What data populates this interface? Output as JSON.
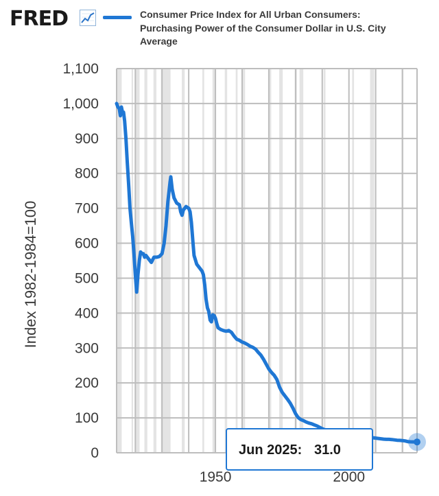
{
  "header": {
    "logo_text": "FRED",
    "logo_icon": "line-chart-icon",
    "title": "Consumer Price Index for All Urban Consumers: Purchasing Power of the Consumer Dollar in U.S. City Average"
  },
  "colors": {
    "line": "#1f77d4",
    "grid": "#bdbdbd",
    "recession": "#e4e4e4",
    "tooltip_border": "#1f77d4"
  },
  "tooltip": {
    "date": "Jun 2025:",
    "value": "31.0"
  },
  "chart_data": {
    "type": "line",
    "title": "Consumer Price Index for All Urban Consumers: Purchasing Power of the Consumer Dollar in U.S. City Average",
    "ylabel": "Index 1982-1984=100",
    "xlabel": "",
    "xlim": [
      1913,
      2025.5
    ],
    "ylim": [
      0,
      1100
    ],
    "x_ticks": [
      1950,
      2000
    ],
    "y_ticks": [
      0,
      100,
      200,
      300,
      400,
      500,
      600,
      700,
      800,
      900,
      1000,
      1100
    ],
    "y_tick_labels": [
      "0",
      "100",
      "200",
      "300",
      "400",
      "500",
      "600",
      "700",
      "800",
      "900",
      "1,000",
      "1,100"
    ],
    "grid": true,
    "recessions": [
      [
        1913.0,
        1914.9
      ],
      [
        1918.6,
        1919.2
      ],
      [
        1920.0,
        1921.6
      ],
      [
        1923.4,
        1924.5
      ],
      [
        1926.8,
        1927.9
      ],
      [
        1929.6,
        1933.2
      ],
      [
        1937.4,
        1938.5
      ],
      [
        1945.1,
        1945.8
      ],
      [
        1948.9,
        1949.8
      ],
      [
        1953.5,
        1954.4
      ],
      [
        1957.6,
        1958.3
      ],
      [
        1960.3,
        1961.1
      ],
      [
        1969.9,
        1970.9
      ],
      [
        1973.9,
        1975.2
      ],
      [
        1980.0,
        1980.5
      ],
      [
        1981.5,
        1982.9
      ],
      [
        1990.5,
        1991.2
      ],
      [
        2001.2,
        2001.9
      ],
      [
        2007.9,
        2009.5
      ],
      [
        2020.1,
        2020.3
      ]
    ],
    "series": [
      {
        "points": [
          [
            1913.0,
            1000
          ],
          [
            1913.5,
            990
          ],
          [
            1914.0,
            985
          ],
          [
            1914.4,
            965
          ],
          [
            1914.8,
            990
          ],
          [
            1915.2,
            975
          ],
          [
            1915.6,
            975
          ],
          [
            1916.0,
            950
          ],
          [
            1916.5,
            900
          ],
          [
            1917.0,
            830
          ],
          [
            1917.5,
            770
          ],
          [
            1918.0,
            700
          ],
          [
            1918.5,
            660
          ],
          [
            1919.0,
            620
          ],
          [
            1919.5,
            570
          ],
          [
            1920.0,
            510
          ],
          [
            1920.5,
            460
          ],
          [
            1921.0,
            510
          ],
          [
            1921.5,
            550
          ],
          [
            1922.0,
            575
          ],
          [
            1922.5,
            570
          ],
          [
            1923.0,
            570
          ],
          [
            1923.5,
            560
          ],
          [
            1924.0,
            565
          ],
          [
            1925.0,
            555
          ],
          [
            1926.0,
            545
          ],
          [
            1927.0,
            560
          ],
          [
            1928.0,
            560
          ],
          [
            1929.0,
            562
          ],
          [
            1930.0,
            570
          ],
          [
            1930.8,
            600
          ],
          [
            1931.5,
            650
          ],
          [
            1932.2,
            720
          ],
          [
            1933.0,
            775
          ],
          [
            1933.3,
            790
          ],
          [
            1933.8,
            755
          ],
          [
            1934.5,
            730
          ],
          [
            1935.5,
            715
          ],
          [
            1936.5,
            710
          ],
          [
            1937.0,
            690
          ],
          [
            1937.5,
            680
          ],
          [
            1938.0,
            695
          ],
          [
            1939.0,
            705
          ],
          [
            1940.0,
            700
          ],
          [
            1940.5,
            690
          ],
          [
            1941.0,
            660
          ],
          [
            1941.5,
            610
          ],
          [
            1942.0,
            565
          ],
          [
            1943.0,
            540
          ],
          [
            1944.0,
            530
          ],
          [
            1945.0,
            520
          ],
          [
            1945.5,
            510
          ],
          [
            1946.0,
            480
          ],
          [
            1946.5,
            440
          ],
          [
            1947.0,
            415
          ],
          [
            1947.5,
            405
          ],
          [
            1948.0,
            380
          ],
          [
            1948.5,
            375
          ],
          [
            1949.0,
            395
          ],
          [
            1949.6,
            392
          ],
          [
            1950.0,
            385
          ],
          [
            1950.5,
            370
          ],
          [
            1951.0,
            358
          ],
          [
            1952.0,
            353
          ],
          [
            1953.0,
            350
          ],
          [
            1954.0,
            348
          ],
          [
            1955.0,
            350
          ],
          [
            1956.0,
            345
          ],
          [
            1957.0,
            334
          ],
          [
            1958.0,
            325
          ],
          [
            1959.0,
            322
          ],
          [
            1960.0,
            317
          ],
          [
            1961.0,
            314
          ],
          [
            1962.0,
            310
          ],
          [
            1963.0,
            305
          ],
          [
            1964.0,
            302
          ],
          [
            1965.0,
            297
          ],
          [
            1966.0,
            288
          ],
          [
            1967.0,
            280
          ],
          [
            1968.0,
            268
          ],
          [
            1969.0,
            254
          ],
          [
            1970.0,
            240
          ],
          [
            1971.0,
            230
          ],
          [
            1972.0,
            222
          ],
          [
            1973.0,
            210
          ],
          [
            1974.0,
            188
          ],
          [
            1975.0,
            173
          ],
          [
            1976.0,
            163
          ],
          [
            1977.0,
            153
          ],
          [
            1978.0,
            142
          ],
          [
            1979.0,
            128
          ],
          [
            1980.0,
            112
          ],
          [
            1981.0,
            101
          ],
          [
            1982.0,
            95
          ],
          [
            1983.0,
            92
          ],
          [
            1984.0,
            88
          ],
          [
            1985.0,
            85
          ],
          [
            1986.0,
            83
          ],
          [
            1987.0,
            80
          ],
          [
            1988.0,
            77
          ],
          [
            1989.0,
            73
          ],
          [
            1990.0,
            69
          ],
          [
            1991.0,
            66
          ],
          [
            1992.0,
            64
          ],
          [
            1993.0,
            62
          ],
          [
            1994.0,
            60
          ],
          [
            1995.0,
            59
          ],
          [
            1996.0,
            57
          ],
          [
            1997.0,
            56
          ],
          [
            1998.0,
            55
          ],
          [
            1999.0,
            54
          ],
          [
            2000.0,
            52
          ],
          [
            2001.0,
            51
          ],
          [
            2002.0,
            50
          ],
          [
            2003.0,
            49
          ],
          [
            2004.0,
            48
          ],
          [
            2005.0,
            46
          ],
          [
            2006.0,
            45
          ],
          [
            2007.0,
            44
          ],
          [
            2008.0,
            42
          ],
          [
            2009.0,
            43
          ],
          [
            2010.0,
            42
          ],
          [
            2011.0,
            41
          ],
          [
            2012.0,
            40
          ],
          [
            2013.0,
            39
          ],
          [
            2014.0,
            38.5
          ],
          [
            2015.0,
            38.5
          ],
          [
            2016.0,
            38
          ],
          [
            2017.0,
            37
          ],
          [
            2018.0,
            36
          ],
          [
            2019.0,
            35.5
          ],
          [
            2020.0,
            35
          ],
          [
            2021.0,
            34
          ],
          [
            2022.0,
            32
          ],
          [
            2023.0,
            31.5
          ],
          [
            2024.0,
            31.3
          ],
          [
            2025.5,
            31.0
          ]
        ]
      }
    ]
  }
}
